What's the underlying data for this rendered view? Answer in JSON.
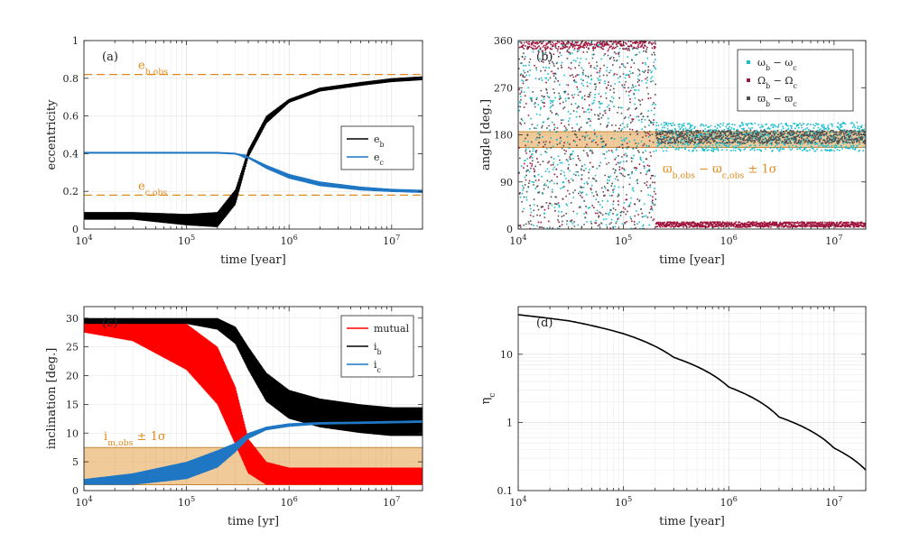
{
  "chart_data": [
    {
      "id": "a",
      "type": "line",
      "panel_label": "(a)",
      "xlabel": "time [year]",
      "ylabel": "eccentricity",
      "xscale": "log",
      "xlim": [
        10000,
        20000000
      ],
      "ylim": [
        0,
        1
      ],
      "xticks": [
        "10^4",
        "10^5",
        "10^6",
        "10^7"
      ],
      "yticks": [
        "0",
        "0.2",
        "0.4",
        "0.6",
        "0.8",
        "1"
      ],
      "legend": [
        "e_b",
        "e_c"
      ],
      "annotations": [
        "e_b,obs",
        "e_c,obs"
      ],
      "hlines": [
        {
          "name": "e_b,obs",
          "y": 0.82,
          "color": "#e08a1e"
        },
        {
          "name": "e_c,obs",
          "y": 0.18,
          "color": "#e08a1e"
        }
      ],
      "series": [
        {
          "name": "e_b",
          "color": "#000000",
          "x": [
            10000,
            30000,
            100000,
            200000,
            300000,
            400000,
            600000,
            1000000,
            2000000,
            5000000,
            10000000,
            20000000
          ],
          "y": [
            0.07,
            0.07,
            0.05,
            0.05,
            0.17,
            0.4,
            0.58,
            0.68,
            0.74,
            0.77,
            0.79,
            0.8
          ],
          "band": [
            0.02,
            0.02,
            0.03,
            0.04,
            0.04,
            0.02,
            0.02,
            0.01,
            0.01,
            0.01,
            0.01,
            0.01
          ]
        },
        {
          "name": "e_c",
          "color": "#1f77c4",
          "x": [
            10000,
            100000,
            200000,
            300000,
            400000,
            600000,
            1000000,
            2000000,
            5000000,
            10000000,
            20000000
          ],
          "y": [
            0.405,
            0.405,
            0.405,
            0.4,
            0.38,
            0.33,
            0.28,
            0.24,
            0.215,
            0.205,
            0.2
          ],
          "band": [
            0,
            0,
            0,
            0,
            0.005,
            0.01,
            0.012,
            0.012,
            0.01,
            0.008,
            0.008
          ]
        }
      ]
    },
    {
      "id": "b",
      "type": "scatter",
      "panel_label": "(b)",
      "xlabel": "time [year]",
      "ylabel": "angle [deg.]",
      "xscale": "log",
      "xlim": [
        10000,
        20000000
      ],
      "ylim": [
        0,
        360
      ],
      "xticks": [
        "10^4",
        "10^5",
        "10^6",
        "10^7"
      ],
      "yticks": [
        "0",
        "90",
        "180",
        "270",
        "360"
      ],
      "legend": [
        "ω_b − ω_c",
        "Ω_b − Ω_c",
        "ϖ_b − ϖ_c"
      ],
      "annotations": [
        "ϖ_b,obs − ϖ_c,obs ± 1σ"
      ],
      "shaded_band": {
        "ymin": 156,
        "ymax": 186,
        "color": "#e08a1e"
      },
      "series": [
        {
          "name": "ω_b − ω_c",
          "color": "#17becf",
          "settled_x": 200000,
          "settled_range": [
            150,
            205
          ]
        },
        {
          "name": "Ω_b − Ω_c",
          "color": "#a0153e",
          "settled_x": 200000,
          "settled_range": [
            5,
            15
          ],
          "early_range": [
            345,
            360
          ]
        },
        {
          "name": "ϖ_b − ϖ_c",
          "color": "#505050",
          "settled_x": 200000,
          "settled_range": [
            165,
            190
          ]
        }
      ]
    },
    {
      "id": "c",
      "type": "line",
      "panel_label": "(c)",
      "xlabel": "time [yr]",
      "ylabel": "inclination [deg.]",
      "xscale": "log",
      "xlim": [
        10000,
        20000000
      ],
      "ylim": [
        0,
        32
      ],
      "xticks": [
        "10^4",
        "10^5",
        "10^6",
        "10^7"
      ],
      "yticks": [
        "0",
        "5",
        "10",
        "15",
        "20",
        "25",
        "30"
      ],
      "legend": [
        "mutual",
        "i_b",
        "i_c"
      ],
      "annotations": [
        "i_m,obs ± 1σ"
      ],
      "shaded_band": {
        "ymin": 1,
        "ymax": 7.5,
        "color": "#e08a1e"
      },
      "series": [
        {
          "name": "mutual",
          "color": "#ff0000",
          "x": [
            10000,
            30000,
            100000,
            200000,
            300000,
            400000,
            600000,
            1000000,
            2000000,
            5000000,
            10000000,
            20000000
          ],
          "y": [
            28.5,
            28,
            25,
            20,
            13,
            6,
            3,
            2.5,
            2.5,
            2.5,
            2.5,
            2.5
          ],
          "band": [
            1,
            2,
            4,
            5,
            5,
            3,
            2,
            1.5,
            1.5,
            1.5,
            1.5,
            1.5
          ]
        },
        {
          "name": "i_b",
          "color": "#000000",
          "x": [
            10000,
            100000,
            200000,
            300000,
            400000,
            600000,
            1000000,
            2000000,
            5000000,
            10000000,
            20000000
          ],
          "y": [
            29.5,
            29.5,
            29,
            27,
            23,
            18,
            15,
            13.5,
            12.5,
            12,
            12
          ],
          "band": [
            0.5,
            0.5,
            1,
            1.5,
            2,
            2.5,
            2.5,
            2.5,
            2.5,
            2.5,
            2.5
          ]
        },
        {
          "name": "i_c",
          "color": "#1f77c4",
          "x": [
            10000,
            30000,
            100000,
            200000,
            300000,
            400000,
            600000,
            1000000,
            2000000,
            5000000,
            10000000,
            20000000
          ],
          "y": [
            1.5,
            2,
            3.5,
            5.5,
            7.5,
            9.5,
            10.8,
            11.4,
            11.7,
            11.8,
            11.9,
            12
          ],
          "band": [
            0.5,
            1,
            1.5,
            1.5,
            0.8,
            0.5,
            0.3,
            0.3,
            0.2,
            0.2,
            0.2,
            0.2
          ]
        }
      ]
    },
    {
      "id": "d",
      "type": "line",
      "panel_label": "(d)",
      "xlabel": "time [year]",
      "ylabel": "η_c",
      "xscale": "log",
      "yscale": "log",
      "xlim": [
        10000,
        20000000
      ],
      "ylim": [
        0.1,
        50
      ],
      "xticks": [
        "10^4",
        "10^5",
        "10^6",
        "10^7"
      ],
      "yticks": [
        "0.1",
        "1",
        "10"
      ],
      "series": [
        {
          "name": "η_c",
          "color": "#000000",
          "x": [
            10000,
            30000,
            100000,
            300000,
            1000000,
            3000000,
            10000000,
            20000000
          ],
          "y": [
            38,
            31,
            20,
            9,
            3.3,
            1.2,
            0.42,
            0.2
          ]
        }
      ]
    }
  ]
}
